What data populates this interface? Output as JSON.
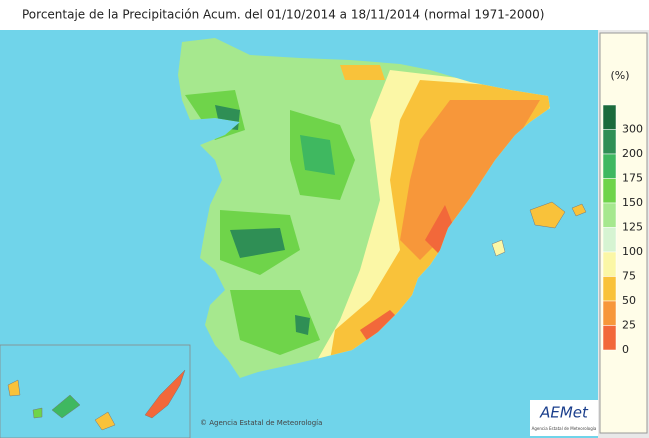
{
  "header": {
    "title": "Porcentaje de la Precipitación Acum. del 01/10/2014 a  18/11/2014  (normal 1971-2000)"
  },
  "legend": {
    "unit": "(%)",
    "items": [
      {
        "label": "300",
        "color": "#1b6b3c"
      },
      {
        "label": "200",
        "color": "#2f8f55"
      },
      {
        "label": "175",
        "color": "#3fb860"
      },
      {
        "label": "150",
        "color": "#6fd44a"
      },
      {
        "label": "125",
        "color": "#a6e88e"
      },
      {
        "label": "100",
        "color": "#d6f4d2"
      },
      {
        "label": "75",
        "color": "#fbf7a6"
      },
      {
        "label": "50",
        "color": "#f9c23a"
      },
      {
        "label": "25",
        "color": "#f7973a"
      },
      {
        "label": "0",
        "color": "#f2683a"
      }
    ]
  },
  "credits": {
    "copyright": "© Agencia Estatal de Meteorología",
    "logo": "AEMet",
    "logo_caption": "Agencia Estatal de Meteorología"
  }
}
